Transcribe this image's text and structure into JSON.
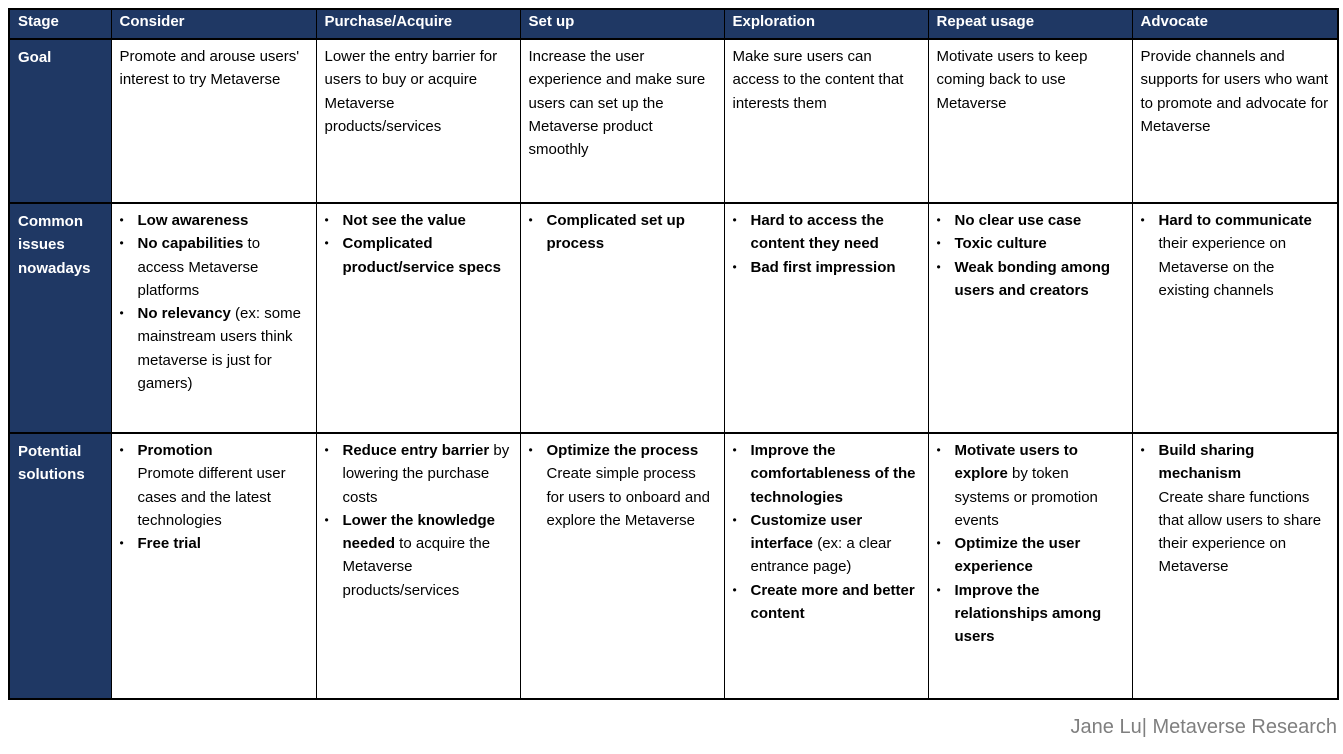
{
  "colors": {
    "header_bg": "#1F3864",
    "header_text": "#FFFFFF",
    "body_text": "#000000",
    "cell_bg": "#FFFFFF",
    "border": "#000000",
    "credit_text": "#7F7F7F"
  },
  "table": {
    "columns": [
      "Stage",
      "Consider",
      "Purchase/Acquire",
      "Set up",
      "Exploration",
      "Repeat usage",
      "Advocate"
    ],
    "rows": [
      {
        "label": "Goal",
        "kind": "paragraph",
        "cells": [
          [
            [
              {
                "t": "Promote and arouse users' interest to try Metaverse",
                "b": 0
              }
            ]
          ],
          [
            [
              {
                "t": "Lower the entry barrier for users to buy or acquire Metaverse products/services",
                "b": 0
              }
            ]
          ],
          [
            [
              {
                "t": "Increase the user experience and make sure users can set up the Metaverse product smoothly",
                "b": 0
              }
            ]
          ],
          [
            [
              {
                "t": "Make sure users can access to the content that interests them",
                "b": 0
              }
            ]
          ],
          [
            [
              {
                "t": "Motivate users to keep coming back to use Metaverse",
                "b": 0
              }
            ]
          ],
          [
            [
              {
                "t": "Provide channels and supports for users who want to promote and advocate for Metaverse",
                "b": 0
              }
            ]
          ]
        ]
      },
      {
        "label": "Common issues nowadays",
        "kind": "bullets",
        "cells": [
          [
            [
              {
                "t": "Low awareness",
                "b": 1
              }
            ],
            [
              {
                "t": "No capabilities",
                "b": 1
              },
              {
                "t": " to access Metaverse platforms",
                "b": 0
              }
            ],
            [
              {
                "t": "No relevancy",
                "b": 1
              },
              {
                "t": " (ex: some mainstream users think metaverse is just for gamers)",
                "b": 0
              }
            ]
          ],
          [
            [
              {
                "t": "Not see the value",
                "b": 1
              }
            ],
            [
              {
                "t": "Complicated product/service specs",
                "b": 1
              }
            ]
          ],
          [
            [
              {
                "t": "Complicated set up process",
                "b": 1
              }
            ]
          ],
          [
            [
              {
                "t": "Hard to access the content they need",
                "b": 1
              }
            ],
            [
              {
                "t": "Bad first impression",
                "b": 1
              }
            ]
          ],
          [
            [
              {
                "t": "No clear use case",
                "b": 1
              }
            ],
            [
              {
                "t": "Toxic culture",
                "b": 1
              }
            ],
            [
              {
                "t": "Weak bonding among users and creators",
                "b": 1
              }
            ]
          ],
          [
            [
              {
                "t": "Hard to communicate",
                "b": 1
              },
              {
                "t": "\ntheir experience on Metaverse on the existing channels",
                "b": 0
              }
            ]
          ]
        ]
      },
      {
        "label": "Potential solutions",
        "kind": "bullets",
        "cells": [
          [
            [
              {
                "t": "Promotion",
                "b": 1
              },
              {
                "t": "\nPromote different user cases and the latest technologies",
                "b": 0
              }
            ],
            [
              {
                "t": "Free trial",
                "b": 1
              }
            ]
          ],
          [
            [
              {
                "t": "Reduce entry barrier",
                "b": 1
              },
              {
                "t": " by lowering the purchase costs",
                "b": 0
              }
            ],
            [
              {
                "t": "Lower the knowledge needed",
                "b": 1
              },
              {
                "t": " to acquire the Metaverse products/services",
                "b": 0
              }
            ]
          ],
          [
            [
              {
                "t": "Optimize the process",
                "b": 1
              },
              {
                "t": "\nCreate simple process for users to onboard and explore the Metaverse",
                "b": 0
              }
            ]
          ],
          [
            [
              {
                "t": "Improve the comfortableness of the technologies",
                "b": 1
              }
            ],
            [
              {
                "t": "Customize user interface",
                "b": 1
              },
              {
                "t": " (ex: a clear entrance page)",
                "b": 0
              }
            ],
            [
              {
                "t": "Create more and better content",
                "b": 1
              }
            ]
          ],
          [
            [
              {
                "t": "Motivate users to explore",
                "b": 1
              },
              {
                "t": " by token systems or promotion events",
                "b": 0
              }
            ],
            [
              {
                "t": "Optimize the user experience",
                "b": 1
              }
            ],
            [
              {
                "t": "Improve the relationships among users",
                "b": 1
              }
            ]
          ],
          [
            [
              {
                "t": "Build sharing mechanism",
                "b": 1
              },
              {
                "t": "\nCreate share functions that allow users to share their experience on Metaverse",
                "b": 0
              }
            ]
          ]
        ]
      }
    ]
  },
  "footer": {
    "credit": "Jane Lu| Metaverse Research"
  }
}
